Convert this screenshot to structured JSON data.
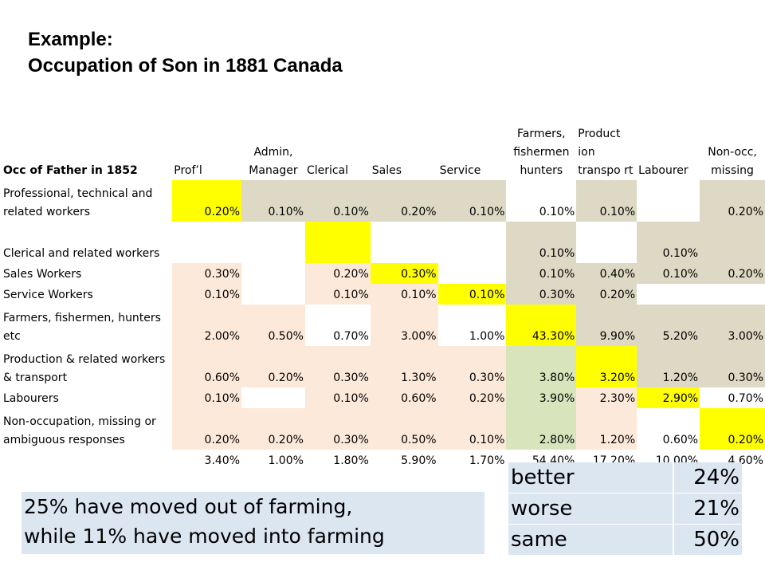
{
  "title": {
    "line1": "Example:",
    "line2": "Occupation of Son in 1881 Canada"
  },
  "table": {
    "row_header": "Occ of Father in 1852",
    "columns": [
      "Prof’l",
      "Admin, Manager",
      "Clerical",
      "Sales",
      "Service",
      "Farmers, fishermen hunters",
      "Product ion transpo rt",
      "Labourer",
      "Non-occ, missing"
    ],
    "rows": [
      {
        "label": "Professional, technical and related workers",
        "values": [
          "0.20%",
          "0.10%",
          "0.10%",
          "0.20%",
          "0.10%",
          "0.10%",
          "0.10%",
          "",
          "0.20%"
        ]
      },
      {
        "label": "Clerical and related workers",
        "values": [
          "",
          "",
          "",
          "",
          "",
          "0.10%",
          "",
          "0.10%",
          ""
        ]
      },
      {
        "label": "Sales Workers",
        "values": [
          "0.30%",
          "",
          "0.20%",
          "0.30%",
          "",
          "0.10%",
          "0.40%",
          "0.10%",
          "0.20%"
        ]
      },
      {
        "label": "Service Workers",
        "values": [
          "0.10%",
          "",
          "0.10%",
          "0.10%",
          "0.10%",
          "0.30%",
          "0.20%",
          "",
          ""
        ]
      },
      {
        "label": "Farmers, fishermen, hunters etc",
        "values": [
          "2.00%",
          "0.50%",
          "0.70%",
          "3.00%",
          "1.00%",
          "43.30%",
          "9.90%",
          "5.20%",
          "3.00%"
        ]
      },
      {
        "label": "Production & related workers & transport",
        "values": [
          "0.60%",
          "0.20%",
          "0.30%",
          "1.30%",
          "0.30%",
          "3.80%",
          "3.20%",
          "1.20%",
          "0.30%"
        ]
      },
      {
        "label": "Labourers",
        "values": [
          "0.10%",
          "",
          "0.10%",
          "0.60%",
          "0.20%",
          "3.90%",
          "2.30%",
          "2.90%",
          "0.70%"
        ]
      },
      {
        "label": "Non-occupation, missing or ambiguous responses",
        "values": [
          "0.20%",
          "0.20%",
          "0.30%",
          "0.50%",
          "0.10%",
          "2.80%",
          "1.20%",
          "0.60%",
          "0.20%"
        ]
      }
    ],
    "totals": [
      "3.40%",
      "1.00%",
      "1.80%",
      "5.90%",
      "1.70%",
      "54.40%",
      "17.20%",
      "10.00%",
      "4.60%"
    ],
    "colors": {
      "diagonal": "#ffff00",
      "upward": "#ddd9c4",
      "downward": "#fde9d9",
      "into_farming": "#d8e4bc"
    }
  },
  "note": {
    "line1": "25% have moved out of farming,",
    "line2": "while 11% have moved into farming",
    "background": "#dce6f1"
  },
  "summary": [
    {
      "label": "better",
      "value": "24%"
    },
    {
      "label": "worse",
      "value": "21%"
    },
    {
      "label": "same",
      "value": "50%"
    }
  ]
}
